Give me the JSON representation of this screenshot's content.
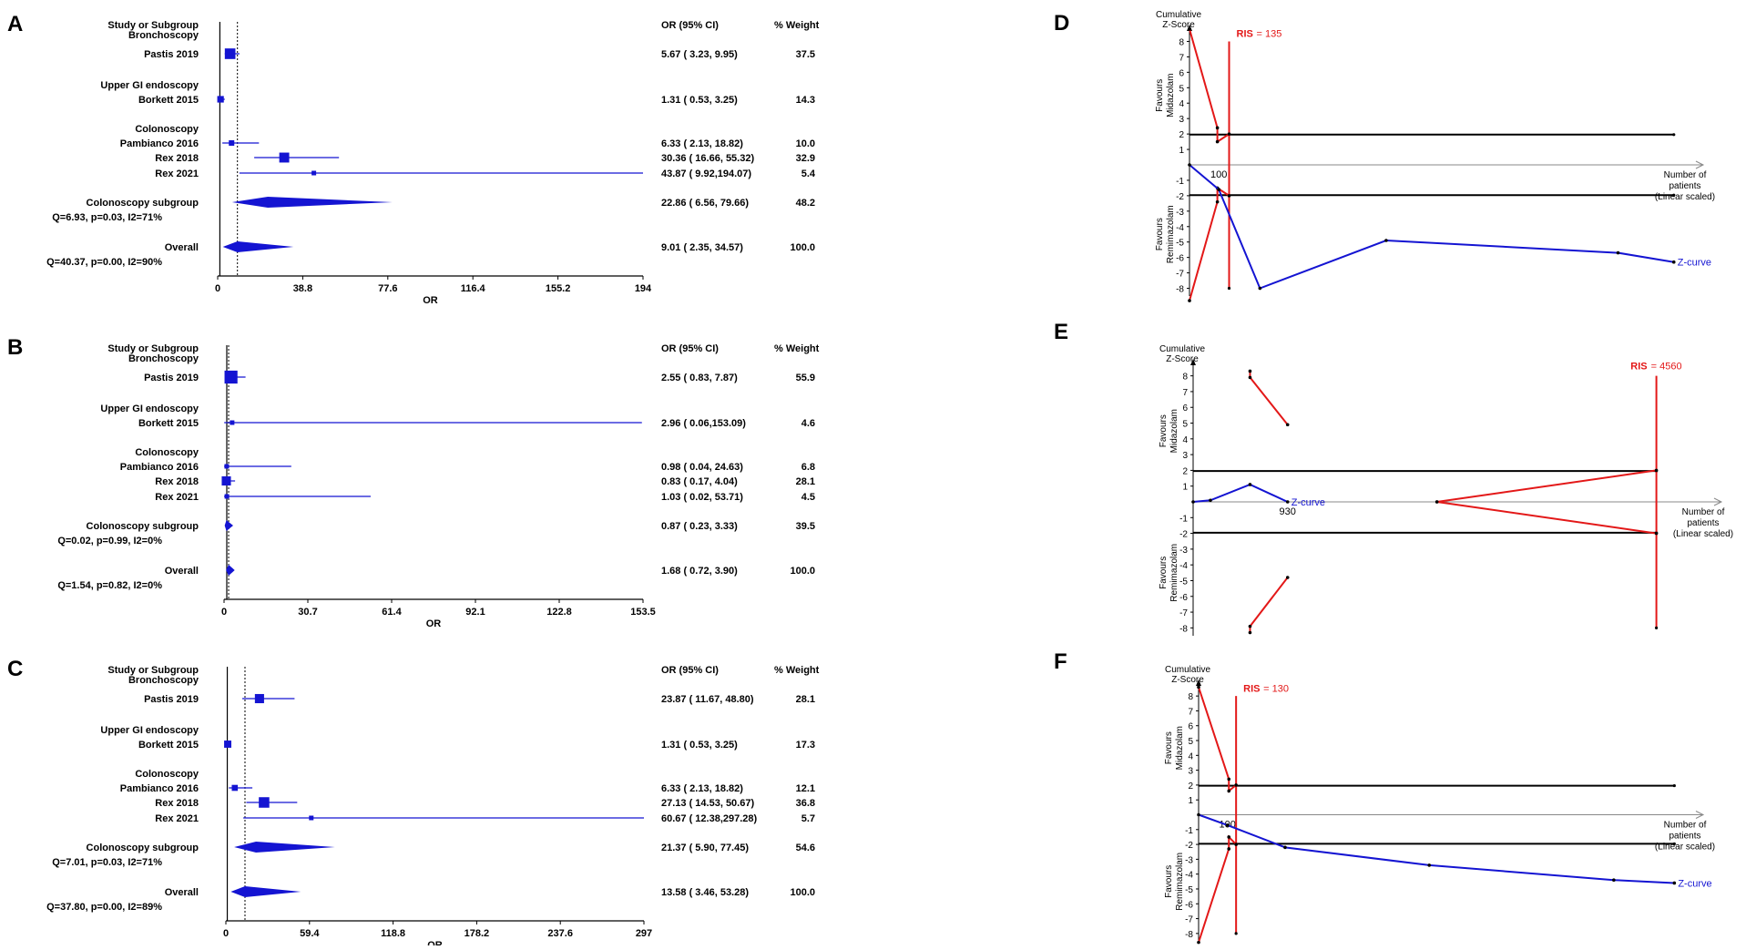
{
  "forest_common": {
    "col_study": "Study or Subgroup",
    "col_or": "OR (95% CI)",
    "col_weight": "% Weight",
    "xlabel": "OR",
    "colors": {
      "line": "#1414d2",
      "text": "#000000"
    }
  },
  "chart_data": [
    {
      "type": "forest",
      "panel_label": "A",
      "xlim": [
        0,
        194
      ],
      "ticks": [
        "0",
        "38.8",
        "77.6",
        "116.4",
        "155.2",
        "194"
      ],
      "null_line": 1,
      "pooled_line": 9.01,
      "rows": [
        {
          "kind": "header",
          "label": "Bronchoscopy"
        },
        {
          "kind": "study",
          "label": "Pastis 2019",
          "or": 5.67,
          "lo": 3.23,
          "hi": 9.95,
          "ci_text": "5.67  (  3.23,  9.95)",
          "weight": 37.5,
          "weight_text": "37.5"
        },
        {
          "kind": "header",
          "label": "Upper GI endoscopy"
        },
        {
          "kind": "study",
          "label": "Borkett 2015",
          "or": 1.31,
          "lo": 0.53,
          "hi": 3.25,
          "ci_text": "1.31  (  0.53,  3.25)",
          "weight": 14.3,
          "weight_text": "14.3"
        },
        {
          "kind": "header",
          "label": "Colonoscopy"
        },
        {
          "kind": "study",
          "label": "Pambianco 2016",
          "or": 6.33,
          "lo": 2.13,
          "hi": 18.82,
          "ci_text": "6.33  (  2.13, 18.82)",
          "weight": 10.0,
          "weight_text": "10.0"
        },
        {
          "kind": "study",
          "label": "Rex 2018",
          "or": 30.36,
          "lo": 16.66,
          "hi": 55.32,
          "ci_text": "30.36  ( 16.66, 55.32)",
          "weight": 32.9,
          "weight_text": "32.9"
        },
        {
          "kind": "study",
          "label": "Rex 2021",
          "or": 43.87,
          "lo": 9.92,
          "hi": 194.07,
          "ci_text": "43.87  (  9.92,194.07)",
          "weight": 5.4,
          "weight_text": "5.4"
        },
        {
          "kind": "pooled",
          "label": "Colonoscopy subgroup",
          "stat": "Q=6.93,  p=0.03,  I2=71%",
          "or": 22.86,
          "lo": 6.56,
          "hi": 79.66,
          "ci_text": "22.86  (  6.56, 79.66)",
          "weight_text": "48.2"
        },
        {
          "kind": "pooled",
          "label": "Overall",
          "stat": "Q=40.37,  p=0.00,  I2=90%",
          "or": 9.01,
          "lo": 2.35,
          "hi": 34.57,
          "ci_text": "9.01  (  2.35, 34.57)",
          "weight_text": "100.0"
        }
      ]
    },
    {
      "type": "forest",
      "panel_label": "B",
      "xlim": [
        0,
        153.5
      ],
      "ticks": [
        "0",
        "30.7",
        "61.4",
        "92.1",
        "122.8",
        "153.5"
      ],
      "null_line": 1,
      "pooled_line": 1.68,
      "rows": [
        {
          "kind": "header",
          "label": "Bronchoscopy"
        },
        {
          "kind": "study",
          "label": "Pastis 2019",
          "or": 2.55,
          "lo": 0.83,
          "hi": 7.87,
          "ci_text": "2.55  (  0.83,  7.87)",
          "weight": 55.9,
          "weight_text": "55.9"
        },
        {
          "kind": "header",
          "label": "Upper GI endoscopy"
        },
        {
          "kind": "study",
          "label": "Borkett 2015",
          "or": 2.96,
          "lo": 0.06,
          "hi": 153.09,
          "ci_text": "2.96  (  0.06,153.09)",
          "weight": 4.6,
          "weight_text": "4.6"
        },
        {
          "kind": "header",
          "label": "Colonoscopy"
        },
        {
          "kind": "study",
          "label": "Pambianco 2016",
          "or": 0.98,
          "lo": 0.04,
          "hi": 24.63,
          "ci_text": "0.98  (  0.04, 24.63)",
          "weight": 6.8,
          "weight_text": "6.8"
        },
        {
          "kind": "study",
          "label": "Rex 2018",
          "or": 0.83,
          "lo": 0.17,
          "hi": 4.04,
          "ci_text": "0.83  (  0.17,  4.04)",
          "weight": 28.1,
          "weight_text": "28.1"
        },
        {
          "kind": "study",
          "label": "Rex 2021",
          "or": 1.03,
          "lo": 0.02,
          "hi": 53.71,
          "ci_text": "1.03  (  0.02, 53.71)",
          "weight": 4.5,
          "weight_text": "4.5"
        },
        {
          "kind": "pooled",
          "label": "Colonoscopy subgroup",
          "stat": "Q=0.02,  p=0.99,  I2=0%",
          "or": 0.87,
          "lo": 0.23,
          "hi": 3.33,
          "ci_text": "0.87  (  0.23,  3.33)",
          "weight_text": "39.5"
        },
        {
          "kind": "pooled",
          "label": "Overall",
          "stat": "Q=1.54,  p=0.82,  I2=0%",
          "or": 1.68,
          "lo": 0.72,
          "hi": 3.9,
          "ci_text": "1.68  (  0.72,  3.90)",
          "weight_text": "100.0"
        }
      ]
    },
    {
      "type": "forest",
      "panel_label": "C",
      "xlim": [
        0,
        297
      ],
      "ticks": [
        "0",
        "59.4",
        "118.8",
        "178.2",
        "237.6",
        "297"
      ],
      "null_line": 1,
      "pooled_line": 13.58,
      "rows": [
        {
          "kind": "header",
          "label": "Bronchoscopy"
        },
        {
          "kind": "study",
          "label": "Pastis 2019",
          "or": 23.87,
          "lo": 11.67,
          "hi": 48.8,
          "ci_text": "23.87  ( 11.67, 48.80)",
          "weight": 28.1,
          "weight_text": "28.1"
        },
        {
          "kind": "header",
          "label": "Upper GI endoscopy"
        },
        {
          "kind": "study",
          "label": "Borkett 2015",
          "or": 1.31,
          "lo": 0.53,
          "hi": 3.25,
          "ci_text": "1.31  (  0.53,  3.25)",
          "weight": 17.3,
          "weight_text": "17.3"
        },
        {
          "kind": "header",
          "label": "Colonoscopy"
        },
        {
          "kind": "study",
          "label": "Pambianco 2016",
          "or": 6.33,
          "lo": 2.13,
          "hi": 18.82,
          "ci_text": "6.33  (  2.13, 18.82)",
          "weight": 12.1,
          "weight_text": "12.1"
        },
        {
          "kind": "study",
          "label": "Rex 2018",
          "or": 27.13,
          "lo": 14.53,
          "hi": 50.67,
          "ci_text": "27.13  ( 14.53, 50.67)",
          "weight": 36.8,
          "weight_text": "36.8"
        },
        {
          "kind": "study",
          "label": "Rex 2021",
          "or": 60.67,
          "lo": 12.38,
          "hi": 297.28,
          "ci_text": "60.67  ( 12.38,297.28)",
          "weight": 5.7,
          "weight_text": "5.7"
        },
        {
          "kind": "pooled",
          "label": "Colonoscopy subgroup",
          "stat": "Q=7.01,  p=0.03,  I2=71%",
          "or": 21.37,
          "lo": 5.9,
          "hi": 77.45,
          "ci_text": "21.37  (  5.90, 77.45)",
          "weight_text": "54.6"
        },
        {
          "kind": "pooled",
          "label": "Overall",
          "stat": "Q=37.80,  p=0.00,  I2=89%",
          "or": 13.58,
          "lo": 3.46,
          "hi": 53.28,
          "ci_text": "13.58  (  3.46, 53.28)",
          "weight_text": "100.0"
        }
      ]
    },
    {
      "type": "tsa",
      "panel_label": "D",
      "ylabel": "Cumulative\nZ-Score",
      "yticks": [
        8,
        7,
        6,
        5,
        4,
        3,
        2,
        1,
        -1,
        -2,
        -3,
        -4,
        -5,
        -6,
        -7,
        -8
      ],
      "ylim": [
        -8.5,
        8.5
      ],
      "xlim": [
        0,
        1750
      ],
      "x_tick_label": "100",
      "x_tick_value": 100,
      "xlabel": "Number of\npatients\n(Linear scaled)",
      "favours_top": "Favours\nMidazolam",
      "favours_bottom": "Favours\nRemimazolam",
      "ris_label": "RIS",
      "ris_value": "= 135",
      "ris_x": 135,
      "conventional_x_end": 1650,
      "z_curve_label": "Z-curve",
      "boundary_upper": [
        [
          0,
          8.8
        ],
        [
          95,
          2.4
        ],
        [
          95,
          1.5
        ],
        [
          135,
          2.0
        ]
      ],
      "boundary_lower": [
        [
          0,
          -8.8
        ],
        [
          95,
          -2.4
        ],
        [
          95,
          -1.5
        ],
        [
          135,
          -2.0
        ]
      ],
      "z_curve": [
        [
          0,
          0.0
        ],
        [
          100,
          -1.6
        ],
        [
          240,
          -8.0
        ],
        [
          670,
          -4.9
        ],
        [
          1460,
          -5.7
        ],
        [
          1650,
          -6.3
        ]
      ]
    },
    {
      "type": "tsa",
      "panel_label": "E",
      "ylabel": "Cumulative\nZ-Score",
      "yticks": [
        8,
        7,
        6,
        5,
        4,
        3,
        2,
        1,
        -1,
        -2,
        -3,
        -4,
        -5,
        -6,
        -7,
        -8
      ],
      "ylim": [
        -8.5,
        8.5
      ],
      "xlim": [
        0,
        5200
      ],
      "x_tick_label": "930",
      "x_tick_value": 930,
      "xlabel": "Number of\npatients\n(Linear scaled)",
      "favours_top": "Favours\nMidazolam",
      "favours_bottom": "Favours\nRemimazolam",
      "ris_label": "RIS",
      "ris_value": "= 4560",
      "ris_x": 4560,
      "conventional_x_end": 4560,
      "z_curve_label": "Z-curve",
      "boundary_upper_segments": [
        [
          [
            560,
            8.3
          ],
          [
            560,
            7.9
          ],
          [
            930,
            4.9
          ]
        ],
        [
          [
            2400,
            0.0
          ],
          [
            4560,
            2.0
          ]
        ]
      ],
      "boundary_lower_segments": [
        [
          [
            560,
            -8.3
          ],
          [
            560,
            -7.9
          ],
          [
            930,
            -4.8
          ]
        ],
        [
          [
            2400,
            0.0
          ],
          [
            4560,
            -2.0
          ]
        ]
      ],
      "z_curve": [
        [
          0,
          0.0
        ],
        [
          170,
          0.1
        ],
        [
          560,
          1.1
        ],
        [
          930,
          0.0
        ]
      ]
    },
    {
      "type": "tsa",
      "panel_label": "F",
      "ylabel": "Cumulative\nZ-Score",
      "yticks": [
        8,
        7,
        6,
        5,
        4,
        3,
        2,
        1,
        -1,
        -2,
        -3,
        -4,
        -5,
        -6,
        -7,
        -8
      ],
      "ylim": [
        -8.5,
        8.5
      ],
      "xlim": [
        0,
        1750
      ],
      "x_tick_label": "100",
      "x_tick_value": 100,
      "xlabel": "Number of\npatients\n(Linear scaled)",
      "favours_top": "Favours\nMidazolam",
      "favours_bottom": "Favours\nRemimazolam",
      "ris_label": "RIS",
      "ris_value": "= 130",
      "ris_x": 130,
      "conventional_x_end": 1650,
      "z_curve_label": "Z-curve",
      "boundary_upper": [
        [
          0,
          8.6
        ],
        [
          105,
          2.4
        ],
        [
          105,
          1.6
        ],
        [
          130,
          2.0
        ]
      ],
      "boundary_lower": [
        [
          0,
          -8.6
        ],
        [
          105,
          -2.3
        ],
        [
          105,
          -1.5
        ],
        [
          130,
          -2.0
        ]
      ],
      "z_curve": [
        [
          0,
          0.0
        ],
        [
          100,
          -0.7
        ],
        [
          300,
          -2.2
        ],
        [
          800,
          -3.4
        ],
        [
          1440,
          -4.4
        ],
        [
          1650,
          -4.6
        ]
      ]
    }
  ]
}
